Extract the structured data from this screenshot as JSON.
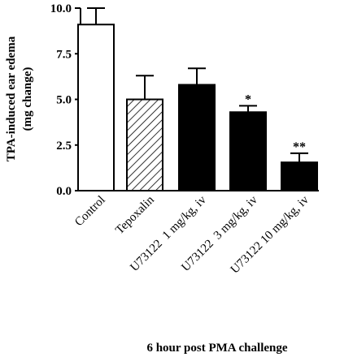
{
  "chart_data": {
    "type": "bar",
    "ylabel": "TPA-induced ear edema",
    "ylabel_sub": "(mg change)",
    "xlabel": "6 hour post PMA challenge",
    "ylim": [
      0,
      10
    ],
    "yticks": [
      "0.0",
      "2.5",
      "5.0",
      "7.5",
      "10.0"
    ],
    "ytick_values": [
      0,
      2.5,
      5,
      7.5,
      10
    ],
    "categories": [
      "Control",
      "Tepoxalin",
      "U73122  1 mg/kg, iv",
      "U73122  3 mg/kg, iv",
      "U73122 10 mg/kg, iv"
    ],
    "values": [
      9.1,
      5.0,
      5.8,
      4.3,
      1.55
    ],
    "errors": [
      0.9,
      1.3,
      0.9,
      0.35,
      0.5
    ],
    "fills": [
      "white",
      "hatched",
      "black",
      "black",
      "black"
    ],
    "significance": [
      "",
      "",
      "",
      "*",
      "**"
    ],
    "grid": false
  }
}
